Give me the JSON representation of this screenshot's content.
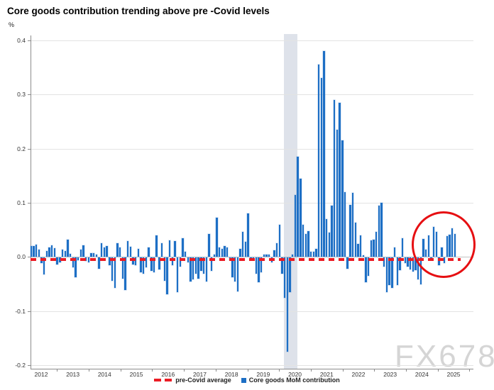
{
  "title": "Core goods contribution trending above pre -Covid levels",
  "y_axis_unit_label": "%",
  "watermark": "FX678",
  "colors": {
    "bar": "#1d6fc5",
    "pre_covid_line": "#eb1c24",
    "recession_band": "#dee2ea",
    "annotation_circle": "#e60f12",
    "grid": "#e3e3e3",
    "zero_line": "#c2c2c2",
    "axis": "#8c8c8c"
  },
  "legend": [
    {
      "label": "pre-Covid average",
      "marker": "red-dashed-line"
    },
    {
      "label": "Core goods MoM contribution",
      "marker": "blue-square"
    }
  ],
  "chart_data": {
    "type": "bar",
    "title": "Core goods contribution trending above pre -Covid levels",
    "xlabel": "",
    "ylabel": "%",
    "ylim": [
      -0.2,
      0.4
    ],
    "grid": "horizontal",
    "legend_position": "bottom-center",
    "yticks": [
      0.4,
      0.3,
      0.2,
      0.1,
      0.0,
      -0.1,
      -0.2
    ],
    "ytick_labels": [
      "0.4",
      "0.3",
      "0.2",
      "0.1",
      "0.0",
      "-0.1",
      "-0.2"
    ],
    "xtick_labels": [
      "2012",
      "2013",
      "2014",
      "2015",
      "2016",
      "2017",
      "2018",
      "2019",
      "2020",
      "2021",
      "2022",
      "2023",
      "2024",
      "2025"
    ],
    "x_monthly_start": "2012-01",
    "x_monthly_end": "2025-07",
    "pre_covid_average": -0.005,
    "recession_band": {
      "start": "2020-02",
      "end": "2020-06"
    },
    "annotation_circle": {
      "highlights": "2024-10 to 2025-07"
    },
    "series": [
      {
        "name": "Core goods MoM contribution",
        "monthly_values": [
          0.02,
          0.02,
          0.023,
          0.014,
          -0.011,
          -0.032,
          0.011,
          0.018,
          0.021,
          0.016,
          -0.013,
          -0.009,
          0.014,
          0.011,
          0.032,
          0.006,
          -0.019,
          -0.037,
          -0.005,
          0.013,
          0.021,
          -0.007,
          -0.009,
          0.007,
          0.007,
          0.004,
          -0.021,
          0.025,
          0.018,
          0.02,
          -0.015,
          -0.043,
          -0.057,
          0.025,
          0.018,
          -0.04,
          -0.06,
          0.029,
          0.019,
          -0.014,
          -0.015,
          0.015,
          -0.028,
          -0.03,
          -0.019,
          0.017,
          -0.025,
          -0.028,
          0.04,
          -0.023,
          0.025,
          -0.043,
          -0.068,
          0.031,
          -0.015,
          0.029,
          -0.064,
          -0.017,
          0.034,
          0.009,
          -0.01,
          -0.045,
          -0.041,
          -0.03,
          -0.04,
          -0.025,
          -0.03,
          -0.045,
          0.043,
          -0.025,
          0.005,
          0.073,
          0.017,
          0.015,
          0.02,
          0.018,
          -0.005,
          -0.037,
          -0.045,
          -0.063,
          0.015,
          0.046,
          0.028,
          0.08,
          -0.005,
          -0.005,
          -0.03,
          -0.046,
          -0.028,
          0.005,
          0.005,
          0.005,
          -0.01,
          0.012,
          0.025,
          0.06,
          -0.03,
          -0.075,
          -0.175,
          -0.065,
          0.005,
          0.115,
          0.185,
          0.145,
          0.06,
          0.042,
          0.047,
          0.01,
          0.01,
          0.015,
          0.355,
          0.33,
          0.38,
          0.07,
          0.045,
          0.095,
          0.29,
          0.235,
          0.285,
          0.215,
          0.12,
          -0.021,
          0.096,
          0.118,
          0.063,
          0.024,
          0.04,
          0.003,
          -0.046,
          -0.035,
          0.03,
          0.032,
          0.046,
          0.095,
          0.1,
          -0.017,
          -0.065,
          -0.051,
          -0.057,
          0.018,
          -0.051,
          -0.024,
          0.034,
          -0.011,
          -0.018,
          -0.023,
          -0.027,
          -0.024,
          -0.041,
          -0.05,
          0.033,
          0.014,
          0.04,
          -0.005,
          0.056,
          0.046,
          -0.015,
          0.018,
          -0.011,
          0.039,
          0.041,
          0.053,
          0.043
        ]
      }
    ]
  }
}
